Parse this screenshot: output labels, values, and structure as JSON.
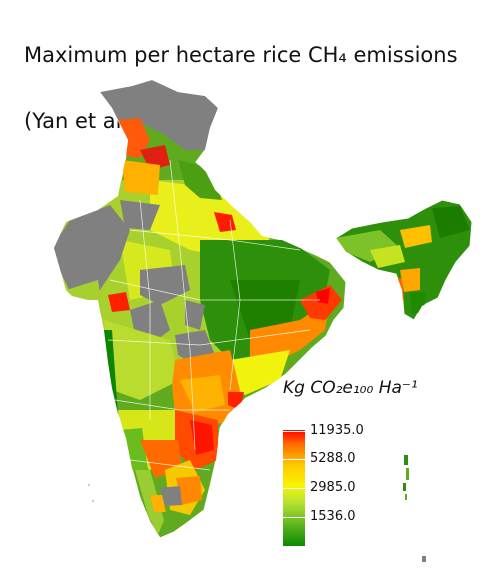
{
  "title": {
    "line1": "Maximum per hectare rice CH₄ emissions",
    "line2": "(Yan et al., 2005)"
  },
  "legend": {
    "title": "Kg CO₂e₁₀₀ Ha⁻¹",
    "ticks": [
      "11935.0",
      "5288.0",
      "2985.0",
      "1536.0"
    ],
    "colors": {
      "high": "#ff0000",
      "mid_high": "#ffc800",
      "mid": "#f6f600",
      "mid_low": "#9acd32",
      "low": "#0a8a00",
      "no_data": "#808080"
    }
  }
}
